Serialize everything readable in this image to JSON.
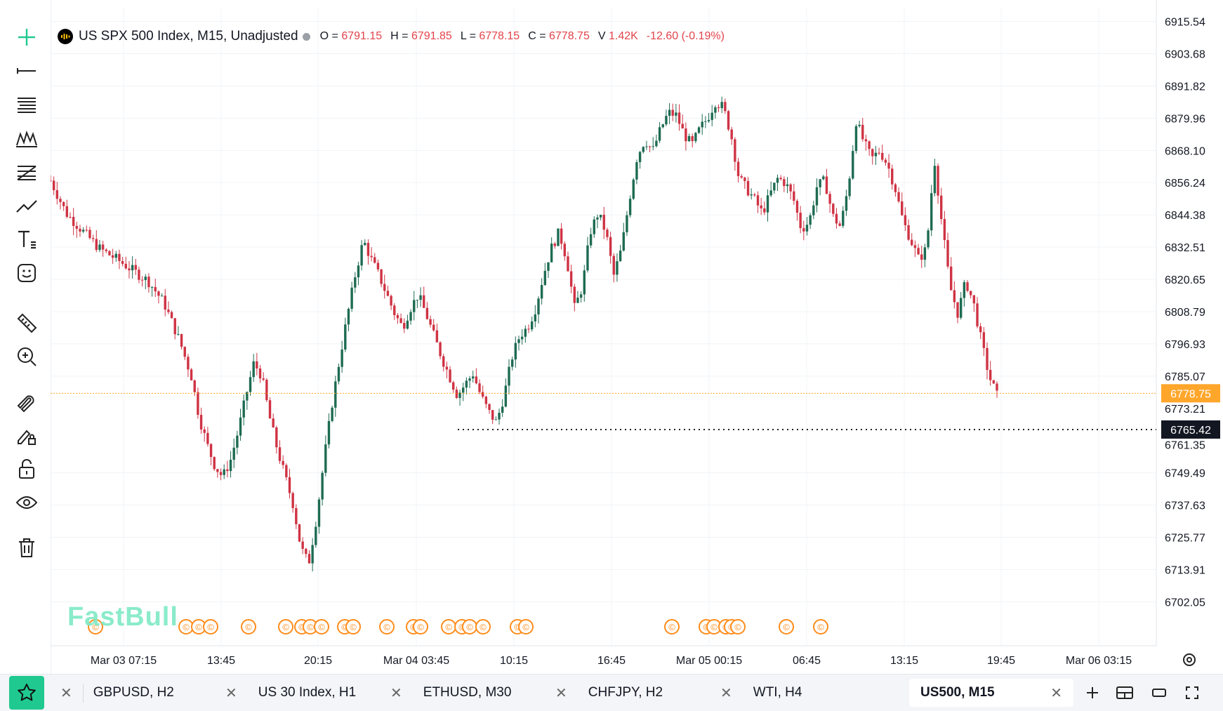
{
  "legend": {
    "title": "US SPX 500 Index, M15, Unadjusted",
    "o_label": "O =",
    "o_value": "6791.15",
    "h_label": "H =",
    "h_value": "6791.85",
    "l_label": "L =",
    "l_value": "6778.15",
    "c_label": "C =",
    "c_value": "6778.75",
    "v_label": "V",
    "v_value": "1.42K",
    "change": "-12.60 (-0.19%)"
  },
  "watermark": "FastBull",
  "price_tags": {
    "last": "6778.75",
    "line": "6765.42",
    "partial_top": "6773.21",
    "partial_bottom": "6761.35"
  },
  "colors": {
    "up": "#1d6b52",
    "down": "#cf3344",
    "accent": "#ffa62b",
    "brand": "#20c98f"
  },
  "toolbar_icons": [
    "crosshair-icon",
    "horizontal-line-icon",
    "fib-channel-icon",
    "pattern-icon",
    "fib-retracement-icon",
    "trend-line-icon",
    "text-tool-icon",
    "emoji-icon",
    "ruler-icon",
    "zoom-in-icon",
    "magnet-icon",
    "lock-drawing-icon",
    "unlock-icon",
    "eye-icon",
    "trash-icon"
  ],
  "tabs": [
    {
      "label": "GBPUSD, H2",
      "active": false
    },
    {
      "label": "US 30 Index, H1",
      "active": false
    },
    {
      "label": "ETHUSD, M30",
      "active": false
    },
    {
      "label": "CHFJPY, H2",
      "active": false
    },
    {
      "label": "WTI, H4",
      "active": false
    },
    {
      "label": "US500, M15",
      "active": true
    }
  ],
  "chart_data": {
    "type": "candlestick",
    "symbol": "US SPX 500 Index",
    "timeframe": "M15",
    "ylim": [
      6697.5,
      6917.5
    ],
    "y_ticks": [
      6915.54,
      6903.68,
      6891.82,
      6879.96,
      6868.1,
      6856.24,
      6844.38,
      6832.51,
      6820.65,
      6808.79,
      6796.93,
      6785.07,
      6749.49,
      6737.63,
      6725.77,
      6713.91,
      6702.05
    ],
    "x_ticks": [
      "Mar 03 07:15",
      "13:45",
      "20:15",
      "Mar 04 03:45",
      "10:15",
      "16:45",
      "Mar 05 00:15",
      "06:45",
      "13:15",
      "19:45",
      "Mar 06 03:15"
    ],
    "last_price": 6778.75,
    "horizontal_line": 6765.42,
    "event_markers": 27,
    "path_points": [
      [
        0,
        6857
      ],
      [
        8,
        6845
      ],
      [
        17,
        6838
      ],
      [
        25,
        6832
      ],
      [
        34,
        6828
      ],
      [
        42,
        6824
      ],
      [
        50,
        6820
      ],
      [
        58,
        6812
      ],
      [
        66,
        6798
      ],
      [
        72,
        6785
      ],
      [
        76,
        6770
      ],
      [
        80,
        6760
      ],
      [
        84,
        6752
      ],
      [
        88,
        6748
      ],
      [
        92,
        6754
      ],
      [
        96,
        6765
      ],
      [
        100,
        6778
      ],
      [
        104,
        6790
      ],
      [
        108,
        6785
      ],
      [
        112,
        6770
      ],
      [
        116,
        6758
      ],
      [
        120,
        6748
      ],
      [
        124,
        6738
      ],
      [
        128,
        6722
      ],
      [
        132,
        6716
      ],
      [
        136,
        6733
      ],
      [
        140,
        6755
      ],
      [
        144,
        6775
      ],
      [
        148,
        6792
      ],
      [
        152,
        6808
      ],
      [
        156,
        6823
      ],
      [
        160,
        6835
      ],
      [
        164,
        6828
      ],
      [
        168,
        6822
      ],
      [
        172,
        6815
      ],
      [
        176,
        6808
      ],
      [
        180,
        6803
      ],
      [
        184,
        6810
      ],
      [
        188,
        6815
      ],
      [
        192,
        6808
      ],
      [
        196,
        6800
      ],
      [
        200,
        6792
      ],
      [
        204,
        6785
      ],
      [
        208,
        6778
      ],
      [
        212,
        6782
      ],
      [
        216,
        6786
      ],
      [
        220,
        6778
      ],
      [
        224,
        6772
      ],
      [
        228,
        6768
      ],
      [
        232,
        6778
      ],
      [
        236,
        6792
      ],
      [
        240,
        6800
      ],
      [
        244,
        6803
      ],
      [
        248,
        6810
      ],
      [
        252,
        6822
      ],
      [
        256,
        6832
      ],
      [
        260,
        6838
      ],
      [
        264,
        6828
      ],
      [
        268,
        6810
      ],
      [
        272,
        6818
      ],
      [
        276,
        6838
      ],
      [
        280,
        6845
      ],
      [
        284,
        6838
      ],
      [
        288,
        6822
      ],
      [
        292,
        6832
      ],
      [
        296,
        6850
      ],
      [
        300,
        6866
      ],
      [
        304,
        6872
      ],
      [
        308,
        6868
      ],
      [
        312,
        6876
      ],
      [
        316,
        6882
      ],
      [
        320,
        6881
      ],
      [
        324,
        6874
      ],
      [
        328,
        6870
      ],
      [
        332,
        6876
      ],
      [
        336,
        6880
      ],
      [
        340,
        6886
      ],
      [
        344,
        6884
      ],
      [
        348,
        6874
      ],
      [
        352,
        6858
      ],
      [
        356,
        6854
      ],
      [
        360,
        6850
      ],
      [
        364,
        6845
      ],
      [
        368,
        6852
      ],
      [
        372,
        6858
      ],
      [
        376,
        6856
      ],
      [
        380,
        6850
      ],
      [
        384,
        6839
      ],
      [
        388,
        6842
      ],
      [
        392,
        6855
      ],
      [
        396,
        6857
      ],
      [
        400,
        6844
      ],
      [
        404,
        6840
      ],
      [
        408,
        6855
      ],
      [
        412,
        6879
      ],
      [
        416,
        6871
      ],
      [
        420,
        6865
      ],
      [
        424,
        6868
      ],
      [
        428,
        6863
      ],
      [
        432,
        6854
      ],
      [
        436,
        6842
      ],
      [
        440,
        6835
      ],
      [
        444,
        6828
      ],
      [
        448,
        6832
      ],
      [
        452,
        6865
      ],
      [
        456,
        6840
      ],
      [
        460,
        6818
      ],
      [
        464,
        6808
      ],
      [
        468,
        6820
      ],
      [
        472,
        6812
      ],
      [
        476,
        6798
      ],
      [
        480,
        6785
      ],
      [
        484,
        6778
      ]
    ]
  }
}
